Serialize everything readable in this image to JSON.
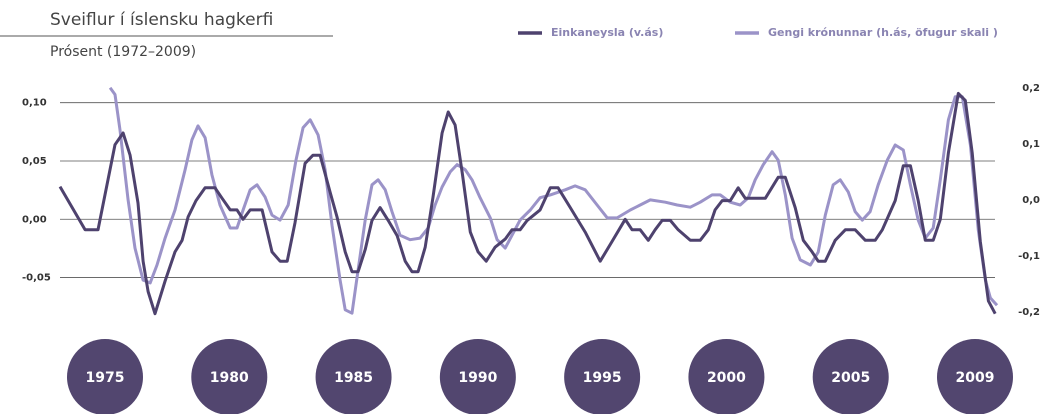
{
  "chart_data": {
    "type": "line",
    "title": "Sveiflur í íslensku hagkerfi",
    "subtitle": "Prósent (1972–2009)",
    "xlim": [
      1972,
      2009
    ],
    "ylim": [
      -0.095,
      0.12
    ],
    "yticks": [
      {
        "value": 0.1,
        "label": "0,10"
      },
      {
        "value": 0.05,
        "label": "0,05"
      },
      {
        "value": 0,
        "label": "0,00"
      },
      {
        "value": -0.05,
        "label": "-0,05"
      }
    ],
    "y2lim": [
      -0.232,
      0.215
    ],
    "y2ticks": [
      {
        "value": 0.2,
        "label": "0,2"
      },
      {
        "value": 0.1,
        "label": "0,1"
      },
      {
        "value": 0,
        "label": "0,0"
      },
      {
        "value": -0.1,
        "label": "-0,1"
      },
      {
        "value": -0.2,
        "label": "-0,2"
      }
    ],
    "grid": true,
    "periods": [
      "1975",
      "1980",
      "1985",
      "1990",
      "1995",
      "2000",
      "2005",
      "2009"
    ],
    "series": [
      {
        "name": "Einkaneysla (v.ás)",
        "color": "#4e426e",
        "axis": "y",
        "x": [
          1972.0,
          1972.99,
          1973.5,
          1974.17,
          1974.49,
          1974.77,
          1975.08,
          1975.28,
          1975.48,
          1975.75,
          1976.15,
          1976.54,
          1976.82,
          1977.06,
          1977.37,
          1977.73,
          1978.12,
          1978.4,
          1978.72,
          1978.99,
          1979.23,
          1979.51,
          1979.98,
          1980.37,
          1980.69,
          1980.97,
          1981.28,
          1981.68,
          1981.99,
          1982.27,
          1982.67,
          1982.94,
          1983.26,
          1983.53,
          1983.77,
          1984.05,
          1984.32,
          1984.64,
          1984.96,
          1985.31,
          1985.63,
          1985.9,
          1986.14,
          1986.42,
          1986.73,
          1987.09,
          1987.33,
          1987.6,
          1987.88,
          1988.2,
          1988.51,
          1988.83,
          1989.18,
          1989.58,
          1989.85,
          1990.17,
          1990.45,
          1990.96,
          1991.36,
          1991.67,
          1992.15,
          1992.74,
          1993.33,
          1993.8,
          1994.32,
          1994.59,
          1994.91,
          1995.23,
          1995.5,
          1995.78,
          1996.1,
          1996.41,
          1996.89,
          1997.28,
          1997.6,
          1997.87,
          1998.15,
          1998.47,
          1998.78,
          1999.06,
          1999.85,
          2000.36,
          2000.64,
          2001.03,
          2001.35,
          2001.7,
          2001.94,
          2002.22,
          2002.61,
          2003.01,
          2003.4,
          2003.8,
          2004.19,
          2004.47,
          2004.98,
          2005.3,
          2005.58,
          2005.89,
          2006.17,
          2006.48,
          2006.76,
          2007.08,
          2007.47,
          2007.75,
          2008.02,
          2008.34,
          2008.66,
          2008.93
        ],
        "values": [
          0.028,
          -0.009,
          -0.009,
          0.064,
          0.074,
          0.055,
          0.014,
          -0.036,
          -0.062,
          -0.081,
          -0.053,
          -0.028,
          -0.018,
          0.002,
          0.016,
          0.027,
          0.027,
          0.018,
          0.008,
          0.008,
          0,
          0.008,
          0.008,
          -0.028,
          -0.036,
          -0.036,
          -0.003,
          0.048,
          0.055,
          0.055,
          0.023,
          0.002,
          -0.028,
          -0.045,
          -0.045,
          -0.026,
          -0.001,
          0.01,
          -0.001,
          -0.014,
          -0.036,
          -0.045,
          -0.045,
          -0.024,
          0.019,
          0.074,
          0.092,
          0.081,
          0.04,
          -0.011,
          -0.028,
          -0.036,
          -0.024,
          -0.017,
          -0.009,
          -0.009,
          -0.001,
          0.008,
          0.027,
          0.027,
          0.01,
          -0.011,
          -0.036,
          -0.019,
          0,
          -0.009,
          -0.009,
          -0.018,
          -0.009,
          -0.001,
          -0.001,
          -0.009,
          -0.018,
          -0.018,
          -0.009,
          0.008,
          0.016,
          0.016,
          0.027,
          0.018,
          0.018,
          0.036,
          0.036,
          0.01,
          -0.018,
          -0.028,
          -0.036,
          -0.036,
          -0.018,
          -0.009,
          -0.009,
          -0.018,
          -0.018,
          -0.009,
          0.016,
          0.046,
          0.046,
          0.016,
          -0.018,
          -0.018,
          0,
          0.057,
          0.108,
          0.102,
          0.057,
          -0.019,
          -0.07,
          -0.081
        ]
      },
      {
        "name": "Gengi krónunnar (h.ás, öfugur skali )",
        "color": "#9b93c8",
        "axis": "y2",
        "x": [
          1973.98,
          1974.17,
          1974.37,
          1974.69,
          1974.96,
          1975.28,
          1975.56,
          1975.83,
          1976.15,
          1976.54,
          1976.94,
          1977.21,
          1977.45,
          1977.73,
          1978.0,
          1978.32,
          1978.72,
          1978.99,
          1979.23,
          1979.51,
          1979.78,
          1980.1,
          1980.37,
          1980.69,
          1981.01,
          1981.32,
          1981.6,
          1981.88,
          1982.19,
          1982.47,
          1982.74,
          1983.06,
          1983.26,
          1983.53,
          1983.77,
          1984.05,
          1984.32,
          1984.56,
          1984.84,
          1985.11,
          1985.43,
          1985.83,
          1986.22,
          1986.54,
          1986.81,
          1987.09,
          1987.41,
          1987.68,
          1988.0,
          1988.27,
          1988.59,
          1988.99,
          1989.26,
          1989.58,
          1989.85,
          1990.17,
          1990.57,
          1990.96,
          1991.36,
          1991.95,
          1992.34,
          1992.74,
          1993.21,
          1993.61,
          1994.0,
          1994.52,
          1994.91,
          1995.31,
          1995.9,
          1996.37,
          1996.89,
          1997.28,
          1997.75,
          1998.07,
          1998.47,
          1998.86,
          1999.18,
          1999.45,
          1999.77,
          2000.12,
          2000.36,
          2000.64,
          2000.91,
          2001.23,
          2001.63,
          2001.94,
          2002.22,
          2002.53,
          2002.81,
          2003.13,
          2003.4,
          2003.68,
          2003.99,
          2004.31,
          2004.67,
          2004.98,
          2005.3,
          2005.58,
          2005.89,
          2006.17,
          2006.48,
          2006.76,
          2007.08,
          2007.35,
          2007.63,
          2007.95,
          2008.26,
          2008.54,
          2008.74,
          2009.0
        ],
        "values": [
          0.2,
          0.188,
          0.125,
          0,
          -0.086,
          -0.143,
          -0.148,
          -0.116,
          -0.068,
          -0.018,
          0.054,
          0.107,
          0.132,
          0.111,
          0.045,
          -0.009,
          -0.05,
          -0.05,
          -0.018,
          0.018,
          0.027,
          0.005,
          -0.027,
          -0.036,
          -0.009,
          0.071,
          0.129,
          0.143,
          0.116,
          0.054,
          -0.045,
          -0.143,
          -0.196,
          -0.202,
          -0.125,
          -0.036,
          0.027,
          0.036,
          0.018,
          -0.021,
          -0.063,
          -0.071,
          -0.068,
          -0.05,
          -0.009,
          0.023,
          0.05,
          0.063,
          0.054,
          0.036,
          0.004,
          -0.032,
          -0.071,
          -0.086,
          -0.063,
          -0.036,
          -0.018,
          0.004,
          0.009,
          0.018,
          0.025,
          0.018,
          -0.009,
          -0.032,
          -0.032,
          -0.018,
          -0.009,
          0,
          -0.004,
          -0.009,
          -0.013,
          -0.004,
          0.009,
          0.009,
          -0.004,
          -0.009,
          0.004,
          0.036,
          0.063,
          0.086,
          0.071,
          0.009,
          -0.068,
          -0.107,
          -0.116,
          -0.093,
          -0.027,
          0.027,
          0.036,
          0.014,
          -0.021,
          -0.036,
          -0.021,
          0.027,
          0.071,
          0.098,
          0.089,
          0.027,
          -0.036,
          -0.068,
          -0.05,
          0.036,
          0.143,
          0.184,
          0.184,
          0.098,
          -0.054,
          -0.143,
          -0.175,
          -0.188
        ]
      }
    ]
  }
}
